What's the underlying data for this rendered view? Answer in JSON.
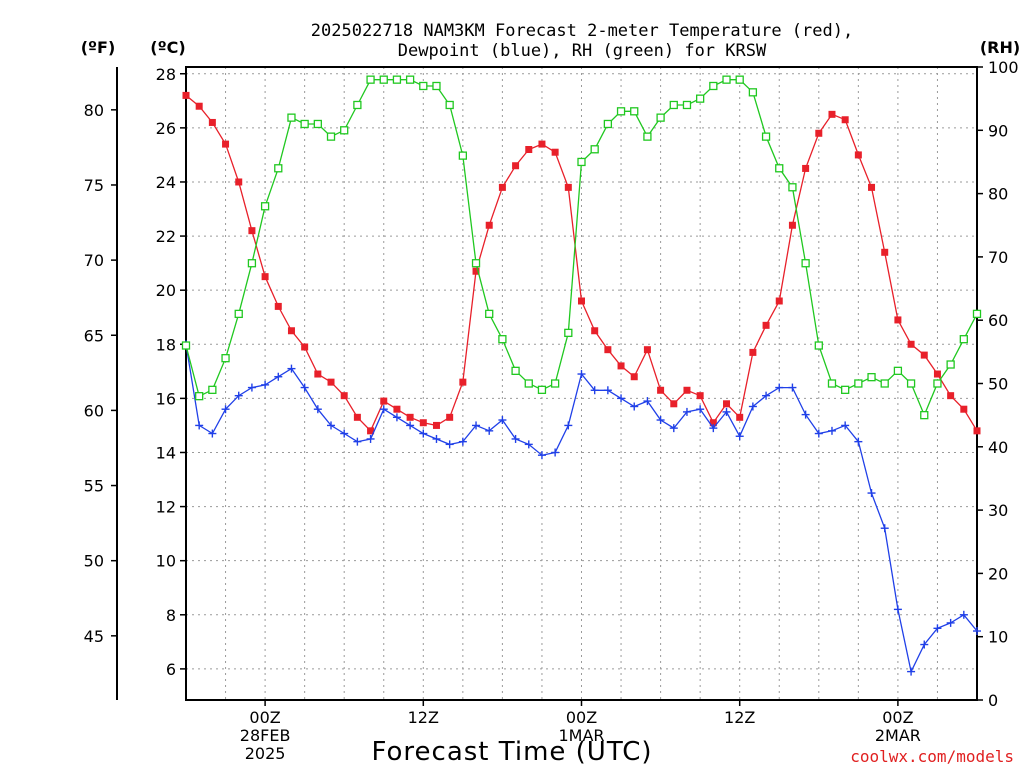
{
  "chart_data": {
    "type": "line",
    "title": "2025022718 NAM3KM Forecast 2-meter Temperature (red),",
    "subtitle": "Dewpoint (blue), RH (green) for KRSW",
    "xlabel": "Forecast Time (UTC)",
    "credit": "coolwx.com/models",
    "units": {
      "f": "(ºF)",
      "c": "(ºC)",
      "rh": "(RH)"
    },
    "x_ticks": [
      {
        "hour": 6,
        "lines": [
          "00Z",
          "28FEB",
          "2025"
        ]
      },
      {
        "hour": 18,
        "lines": [
          "12Z"
        ]
      },
      {
        "hour": 30,
        "lines": [
          "00Z",
          "1MAR"
        ]
      },
      {
        "hour": 42,
        "lines": [
          "12Z"
        ]
      },
      {
        "hour": 54,
        "lines": [
          "00Z",
          "2MAR"
        ]
      }
    ],
    "xlim": [
      0,
      60
    ],
    "c_ticks": [
      6,
      8,
      10,
      12,
      14,
      16,
      18,
      20,
      22,
      24,
      26,
      28
    ],
    "c_lim": [
      4.85,
      28.25
    ],
    "f_ticks": [
      45,
      50,
      55,
      60,
      65,
      70,
      75,
      80
    ],
    "rh_ticks": [
      0,
      10,
      20,
      30,
      40,
      50,
      60,
      70,
      80,
      90,
      100
    ],
    "rh_lim": [
      0,
      100
    ],
    "grid": true,
    "hours": [
      0,
      1,
      2,
      3,
      4,
      5,
      6,
      7,
      8,
      9,
      10,
      11,
      12,
      13,
      14,
      15,
      16,
      17,
      18,
      19,
      20,
      21,
      22,
      23,
      24,
      25,
      26,
      27,
      28,
      29,
      30,
      31,
      32,
      33,
      34,
      35,
      36,
      37,
      38,
      39,
      40,
      41,
      42,
      43,
      44,
      45,
      46,
      47,
      48,
      49,
      50,
      51,
      52,
      53,
      54,
      55,
      56,
      57,
      58,
      59,
      60
    ],
    "series": [
      {
        "name": "Temperature",
        "unit": "C",
        "color": "#e8202a",
        "marker": "filled-square",
        "values": [
          27.2,
          26.8,
          26.2,
          25.4,
          24.0,
          22.2,
          20.5,
          19.4,
          18.5,
          17.9,
          16.9,
          16.6,
          16.1,
          15.3,
          14.8,
          15.9,
          15.6,
          15.3,
          15.1,
          15.0,
          15.3,
          16.6,
          20.7,
          22.4,
          23.8,
          24.6,
          25.2,
          25.4,
          25.1,
          23.8,
          19.6,
          18.5,
          17.8,
          17.2,
          16.8,
          17.8,
          16.3,
          15.8,
          16.3,
          16.1,
          15.1,
          15.8,
          15.3,
          17.7,
          18.7,
          19.6,
          22.4,
          24.5,
          25.8,
          26.5,
          26.3,
          25.0,
          23.8,
          21.4,
          18.9,
          18.0,
          17.6,
          16.9,
          16.1,
          15.6,
          14.8
        ]
      },
      {
        "name": "Dewpoint",
        "unit": "C",
        "color": "#2040e8",
        "marker": "plus",
        "values": [
          18.0,
          15.0,
          14.7,
          15.6,
          16.1,
          16.4,
          16.5,
          16.8,
          17.1,
          16.4,
          15.6,
          15.0,
          14.7,
          14.4,
          14.5,
          15.6,
          15.3,
          15.0,
          14.7,
          14.5,
          14.3,
          14.4,
          15.0,
          14.8,
          15.2,
          14.5,
          14.3,
          13.9,
          14.0,
          15.0,
          16.9,
          16.3,
          16.3,
          16.0,
          15.7,
          15.9,
          15.2,
          14.9,
          15.5,
          15.6,
          14.9,
          15.5,
          14.6,
          15.7,
          16.1,
          16.4,
          16.4,
          15.4,
          14.7,
          14.8,
          15.0,
          14.4,
          12.5,
          11.2,
          8.2,
          5.9,
          6.9,
          7.5,
          7.7,
          8.0,
          7.4
        ]
      },
      {
        "name": "RH",
        "unit": "%",
        "color": "#20c820",
        "marker": "open-square",
        "values": [
          56,
          48,
          49,
          54,
          61,
          69,
          78,
          84,
          92,
          91,
          91,
          89,
          90,
          94,
          98,
          98,
          98,
          98,
          97,
          97,
          94,
          86,
          69,
          61,
          57,
          52,
          50,
          49,
          50,
          58,
          85,
          87,
          91,
          93,
          93,
          89,
          92,
          94,
          94,
          95,
          97,
          98,
          98,
          96,
          89,
          84,
          81,
          69,
          56,
          50,
          49,
          50,
          51,
          50,
          52,
          50,
          45,
          50,
          53,
          57,
          61
        ]
      }
    ]
  }
}
